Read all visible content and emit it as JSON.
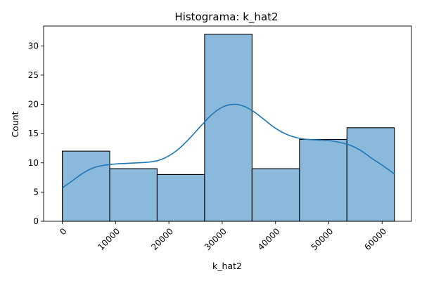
{
  "chart_data": {
    "type": "bar",
    "title": "Histograma: k_hat2",
    "xlabel": "k_hat2",
    "ylabel": "Count",
    "xlim": [
      -3500,
      65500
    ],
    "ylim": [
      0,
      33.4
    ],
    "x_ticks": [
      0,
      10000,
      20000,
      30000,
      40000,
      50000,
      60000
    ],
    "y_ticks": [
      0,
      5,
      10,
      15,
      20,
      25,
      30
    ],
    "bin_edges": [
      0,
      8900,
      17800,
      26700,
      35600,
      44500,
      53400,
      62300
    ],
    "counts": [
      12,
      9,
      8,
      32,
      9,
      14,
      16
    ],
    "kde": {
      "x": [
        0,
        2000,
        4000,
        6000,
        8000,
        10000,
        12000,
        14000,
        16000,
        18000,
        20000,
        22000,
        24000,
        26000,
        28000,
        30000,
        32000,
        34000,
        36000,
        38000,
        40000,
        42000,
        44000,
        46000,
        48000,
        50000,
        52000,
        54000,
        56000,
        58000,
        60000,
        62300
      ],
      "y": [
        5.7,
        7.0,
        8.3,
        9.2,
        9.6,
        9.8,
        9.9,
        10.0,
        10.1,
        10.4,
        11.2,
        12.5,
        14.3,
        16.3,
        18.2,
        19.5,
        20.0,
        19.7,
        18.7,
        17.3,
        15.9,
        14.9,
        14.3,
        14.0,
        13.9,
        13.8,
        13.5,
        13.0,
        12.1,
        10.8,
        9.6,
        8.1
      ]
    },
    "bar_color": "#8bb9dc",
    "line_color": "#1f77b4",
    "grid": false,
    "x_tick_rotation": 45
  }
}
